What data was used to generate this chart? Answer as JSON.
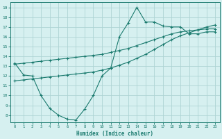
{
  "line1_x": [
    0,
    1,
    2,
    3,
    4,
    5,
    6,
    7,
    8,
    9,
    10,
    11,
    12,
    13,
    14,
    15,
    16,
    17,
    18,
    19,
    20,
    21,
    22,
    23
  ],
  "line1_y": [
    13.3,
    12.1,
    12.0,
    10.0,
    8.7,
    8.0,
    7.6,
    7.5,
    8.6,
    10.0,
    12.0,
    12.8,
    16.0,
    17.4,
    19.0,
    17.5,
    17.5,
    17.1,
    17.0,
    17.0,
    16.3,
    16.3,
    16.5,
    16.5
  ],
  "line2_x": [
    0,
    1,
    2,
    3,
    4,
    5,
    6,
    7,
    8,
    9,
    10,
    11,
    12,
    13,
    14,
    15,
    16,
    17,
    18,
    19,
    20,
    21,
    22,
    23
  ],
  "line2_y": [
    13.2,
    13.3,
    13.4,
    13.5,
    13.6,
    13.7,
    13.8,
    13.9,
    14.0,
    14.1,
    14.2,
    14.4,
    14.6,
    14.8,
    15.1,
    15.4,
    15.7,
    16.0,
    16.3,
    16.5,
    16.6,
    16.7,
    16.8,
    16.8
  ],
  "line3_x": [
    0,
    1,
    2,
    3,
    4,
    5,
    6,
    7,
    8,
    9,
    10,
    11,
    12,
    13,
    14,
    15,
    16,
    17,
    18,
    19,
    20,
    21,
    22,
    23
  ],
  "line3_y": [
    11.5,
    11.6,
    11.7,
    11.8,
    11.9,
    12.0,
    12.1,
    12.2,
    12.3,
    12.4,
    12.6,
    12.8,
    13.1,
    13.4,
    13.8,
    14.2,
    14.7,
    15.2,
    15.7,
    16.1,
    16.4,
    16.7,
    17.0,
    17.2
  ],
  "line_color": "#1a7a6e",
  "bg_color": "#d6f0f0",
  "grid_color": "#aed4d4",
  "xlabel": "Humidex (Indice chaleur)",
  "xlim": [
    -0.5,
    23.5
  ],
  "ylim": [
    7.3,
    19.5
  ],
  "yticks": [
    8,
    9,
    10,
    11,
    12,
    13,
    14,
    15,
    16,
    17,
    18,
    19
  ],
  "xticks": [
    0,
    1,
    2,
    3,
    4,
    5,
    6,
    7,
    8,
    9,
    10,
    11,
    12,
    13,
    14,
    15,
    16,
    17,
    18,
    19,
    20,
    21,
    22,
    23
  ]
}
